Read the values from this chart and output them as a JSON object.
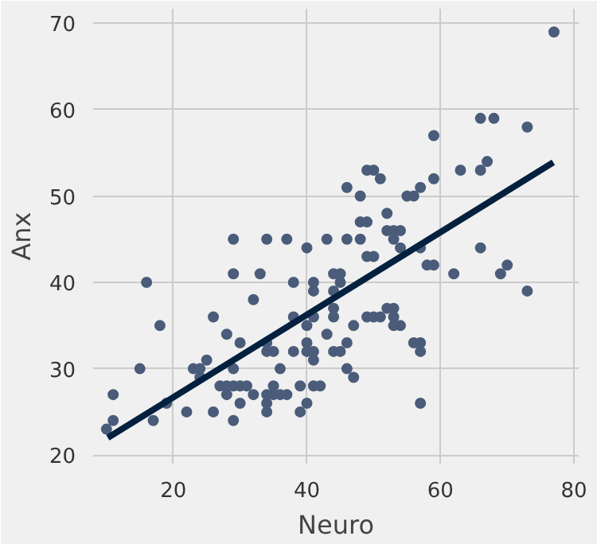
{
  "chart_data": {
    "type": "scatter",
    "xlabel": "Neuro",
    "ylabel": "Anx",
    "xlim": [
      8,
      80.7
    ],
    "ylim": [
      19,
      71.7
    ],
    "xticks": [
      20,
      40,
      60,
      80
    ],
    "yticks": [
      20,
      30,
      40,
      50,
      60,
      70
    ],
    "grid": true,
    "marker": "circle",
    "series": [
      {
        "color": "#4a5c7a",
        "x": [
          10,
          11,
          11,
          17,
          15,
          16,
          18,
          19,
          22,
          26,
          29,
          23,
          24,
          24,
          25,
          26,
          28,
          29,
          27,
          28,
          29,
          30,
          31,
          28,
          30,
          32,
          30,
          32,
          29,
          29,
          33,
          34,
          37,
          34,
          34,
          35,
          36,
          35,
          34,
          35,
          36,
          37,
          34,
          34,
          38,
          38,
          38,
          39,
          39,
          40,
          40,
          40,
          40,
          40,
          41,
          41,
          41,
          41,
          41,
          41,
          42,
          43,
          43,
          44,
          45,
          45,
          44,
          44,
          44,
          44,
          45,
          46,
          46,
          47,
          47,
          46,
          48,
          46,
          48,
          48,
          49,
          49,
          50,
          49,
          50,
          51,
          49,
          50,
          51,
          52,
          53,
          53,
          53,
          54,
          52,
          52,
          53,
          54,
          53,
          54,
          55,
          56,
          57,
          56,
          57,
          57,
          59,
          59,
          57,
          58,
          59,
          57,
          62,
          63,
          66,
          67,
          66,
          68,
          66,
          69,
          70,
          73,
          73,
          77
        ],
        "values": [
          23,
          24,
          27,
          24,
          30,
          40,
          35,
          26,
          25,
          25,
          24,
          30,
          30,
          29,
          31,
          36,
          34,
          30,
          28,
          28,
          28,
          28,
          28,
          27,
          26,
          27,
          33,
          38,
          41,
          45,
          41,
          45,
          45,
          33,
          32,
          32,
          30,
          28,
          27,
          27,
          27,
          27,
          26,
          25,
          32,
          36,
          40,
          28,
          25,
          26,
          32,
          33,
          35,
          44,
          40,
          39,
          36,
          32,
          31,
          28,
          28,
          34,
          45,
          41,
          41,
          40,
          39,
          37,
          36,
          32,
          32,
          33,
          30,
          29,
          35,
          45,
          45,
          51,
          50,
          47,
          47,
          43,
          43,
          53,
          53,
          52,
          36,
          36,
          36,
          37,
          37,
          36,
          35,
          35,
          48,
          46,
          46,
          46,
          45,
          44,
          50,
          50,
          51,
          33,
          32,
          26,
          57,
          52,
          44,
          42,
          42,
          33,
          41,
          53,
          53,
          54,
          59,
          59,
          44,
          41,
          42,
          58,
          39,
          69
        ]
      },
      {
        "type": "line",
        "color": "#03203f",
        "x": [
          10.2,
          76.9
        ],
        "values": [
          22,
          53.9
        ],
        "marker": "none"
      }
    ]
  }
}
